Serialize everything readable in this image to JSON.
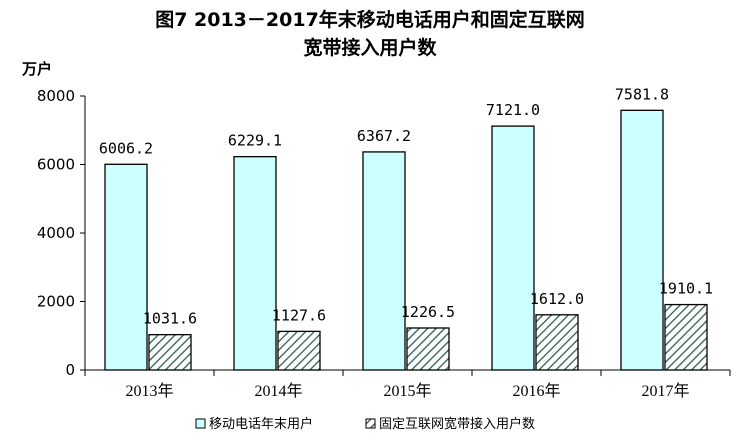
{
  "chart_data": {
    "type": "bar",
    "title": [
      "图7 2013－2017年末移动电话用户和固定互联网",
      "宽带接入用户数"
    ],
    "ylabel": "万户",
    "xlabel": "",
    "ylim": [
      0,
      8000
    ],
    "yticks": [
      0,
      2000,
      4000,
      6000,
      8000
    ],
    "grid": false,
    "legend_position": "bottom",
    "categories": [
      "2013年",
      "2014年",
      "2015年",
      "2016年",
      "2017年"
    ],
    "series": [
      {
        "name": "移动电话年末用户",
        "values": [
          6006.2,
          6229.1,
          6367.2,
          7121.0,
          7581.8
        ],
        "labels": [
          "6006.2",
          "6229.1",
          "6367.2",
          "7121.0",
          "7581.8"
        ],
        "fill": "#ccffff",
        "stroke": "#000000",
        "pattern": "solid"
      },
      {
        "name": "固定互联网宽带接入用户数",
        "values": [
          1031.6,
          1127.6,
          1226.5,
          1612.0,
          1910.1
        ],
        "labels": [
          "1031.6",
          "1127.6",
          "1226.5",
          "1612.0",
          "1910.1"
        ],
        "fill": "#ffffff",
        "stroke": "#000000",
        "pattern": "diagonal-hatch"
      }
    ]
  }
}
